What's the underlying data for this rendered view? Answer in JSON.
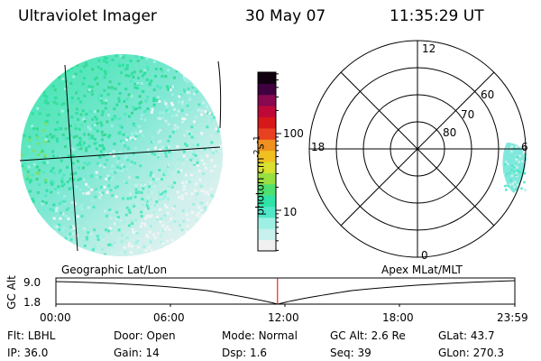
{
  "header": {
    "instrument": "Ultraviolet Imager",
    "date": "30 May 07",
    "time": "11:35:29 UT"
  },
  "colorbar": {
    "unit_main": "photon cm",
    "unit_sup1": "-2",
    "unit_mid": "s",
    "unit_sup2": "-1",
    "ticks": [
      {
        "label": "100",
        "value": 100
      },
      {
        "label": "10",
        "value": 10
      }
    ],
    "colors": [
      "#f0f0f0",
      "#c8f0ec",
      "#9ff0e4",
      "#50e8c8",
      "#30e4a8",
      "#50e070",
      "#98e040",
      "#d8e030",
      "#f0c020",
      "#f09020",
      "#e84020",
      "#d81818",
      "#c00838",
      "#880850",
      "#400040",
      "#100010"
    ]
  },
  "polar_plot": {
    "labels": [
      {
        "text": "12",
        "id": "label-12"
      },
      {
        "text": "60",
        "id": "label-60"
      },
      {
        "text": "70",
        "id": "label-70"
      },
      {
        "text": "80",
        "id": "label-80"
      },
      {
        "text": "18",
        "id": "label-18"
      },
      {
        "text": "6",
        "id": "label-6"
      },
      {
        "text": "0",
        "id": "label-0"
      }
    ]
  },
  "captions": {
    "left": "Geographic Lat/Lon",
    "right": "Apex MLat/MLT"
  },
  "altitude_plot": {
    "axis_label": "GC Alt",
    "yticks": [
      "9.0",
      "1.8"
    ],
    "xticks": [
      "00:00",
      "06:00",
      "12:00",
      "18:00",
      "23:59"
    ],
    "current_time_fraction": 0.483
  },
  "status": {
    "row1": [
      {
        "label": "Flt:",
        "value": "LBHL"
      },
      {
        "label": "Door:",
        "value": "Open"
      },
      {
        "label": "Mode:",
        "value": "Normal"
      },
      {
        "label": "GC Alt:",
        "value": "2.6 Re"
      },
      {
        "label": "GLat:",
        "value": "43.7"
      }
    ],
    "row2": [
      {
        "label": "IP:",
        "value": "36.0"
      },
      {
        "label": "Gain:",
        "value": "14"
      },
      {
        "label": "Dsp:",
        "value": "1.6"
      },
      {
        "label": "Seq:",
        "value": "39"
      },
      {
        "label": "GLon:",
        "value": "270.3"
      }
    ]
  }
}
